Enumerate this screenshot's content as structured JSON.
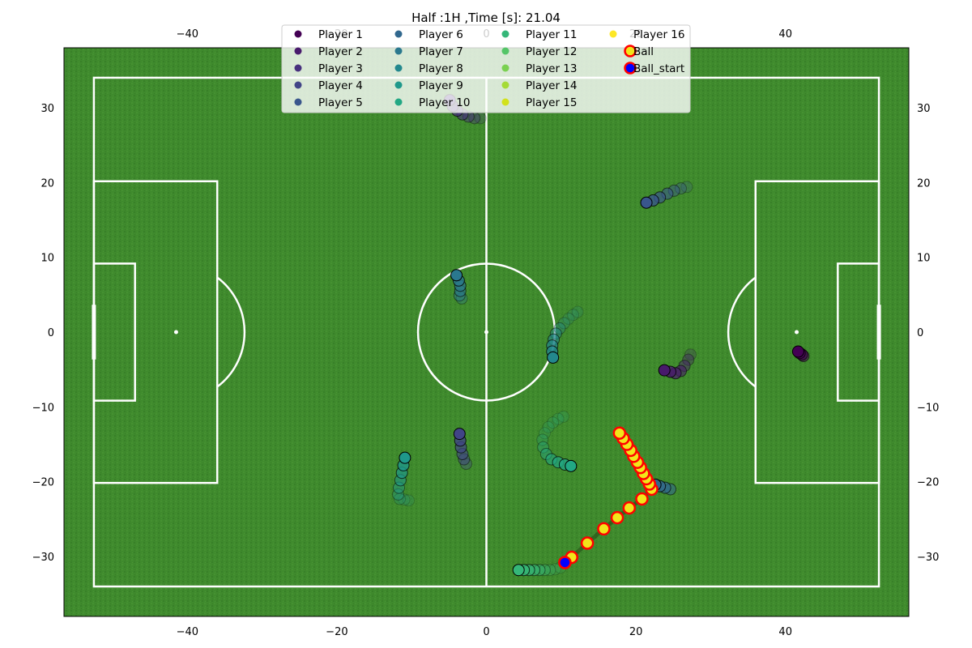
{
  "chart_data": {
    "type": "scatter",
    "title": "Half :1H ,Time [s]: 21.04",
    "xlim": [
      -56.5,
      56.5
    ],
    "ylim": [
      -38,
      38
    ],
    "x_ticks": [
      -40,
      -20,
      0,
      20,
      40
    ],
    "y_ticks": [
      -30,
      -20,
      -10,
      0,
      10,
      20,
      30
    ],
    "x_tick_labels": [
      "−40",
      "−20",
      "0",
      "20",
      "40"
    ],
    "y_tick_labels": [
      "−30",
      "−20",
      "−10",
      "0",
      "10",
      "20",
      "30"
    ],
    "grid": false,
    "legend_position": "top-center",
    "background": "pitch",
    "colors": {
      "pitch": "#3f8a2d",
      "pitch_dark": "#35771f",
      "lines": "#ffffff",
      "ball_fill": "#f2e51a",
      "ball_edge": "#ff0000",
      "ball_start_fill": "#0000ff"
    },
    "series": [
      {
        "name": "Player 1",
        "color": "#440154",
        "points": [
          [
            41.7,
            -2.6
          ],
          [
            41.9,
            -2.8
          ],
          [
            42.2,
            -3.0
          ],
          [
            42.4,
            -3.2
          ]
        ]
      },
      {
        "name": "Player 2",
        "color": "#481a6c",
        "points": [
          [
            23.8,
            -5.1
          ],
          [
            24.6,
            -5.3
          ],
          [
            25.3,
            -5.5
          ],
          [
            26.0,
            -5.2
          ],
          [
            26.5,
            -4.5
          ],
          [
            27.0,
            -3.7
          ],
          [
            27.3,
            -3.0
          ]
        ]
      },
      {
        "name": "Player 3",
        "color": "#472f7d",
        "points": [
          [
            -4.9,
            31.0
          ],
          [
            -4.5,
            30.2
          ],
          [
            -3.9,
            29.6
          ],
          [
            -3.2,
            29.1
          ],
          [
            -2.4,
            28.8
          ],
          [
            -1.6,
            28.6
          ],
          [
            -0.8,
            28.6
          ]
        ]
      },
      {
        "name": "Player 4",
        "color": "#414487",
        "points": [
          [
            -3.6,
            -13.6
          ],
          [
            -3.5,
            -14.5
          ],
          [
            -3.4,
            -15.4
          ],
          [
            -3.2,
            -16.3
          ],
          [
            -3.0,
            -17.0
          ],
          [
            -2.7,
            -17.6
          ]
        ]
      },
      {
        "name": "Player 5",
        "color": "#39568c",
        "points": [
          [
            21.4,
            17.3
          ],
          [
            22.3,
            17.6
          ],
          [
            23.2,
            18.0
          ],
          [
            24.2,
            18.5
          ],
          [
            25.1,
            18.9
          ],
          [
            26.0,
            19.2
          ],
          [
            26.8,
            19.4
          ]
        ]
      },
      {
        "name": "Player 6",
        "color": "#31688e",
        "points": [
          [
            22.6,
            -20.4
          ],
          [
            23.2,
            -20.6
          ],
          [
            23.9,
            -20.8
          ],
          [
            24.6,
            -21.0
          ]
        ]
      },
      {
        "name": "Player 7",
        "color": "#2a788e",
        "points": [
          [
            -4.0,
            7.6
          ],
          [
            -3.7,
            6.9
          ],
          [
            -3.5,
            6.2
          ],
          [
            -3.5,
            5.5
          ],
          [
            -3.6,
            4.9
          ],
          [
            -3.3,
            4.5
          ]
        ]
      },
      {
        "name": "Player 8",
        "color": "#23888e",
        "points": [
          [
            8.9,
            -3.4
          ],
          [
            8.8,
            -2.6
          ],
          [
            8.8,
            -1.8
          ],
          [
            9.0,
            -1.0
          ],
          [
            9.3,
            -0.2
          ],
          [
            9.8,
            0.5
          ],
          [
            10.4,
            1.2
          ],
          [
            11.0,
            1.8
          ],
          [
            11.6,
            2.3
          ],
          [
            12.2,
            2.7
          ]
        ]
      },
      {
        "name": "Player 9",
        "color": "#1f988b",
        "points": [
          [
            -10.9,
            -16.8
          ],
          [
            -11.1,
            -17.8
          ],
          [
            -11.3,
            -18.8
          ],
          [
            -11.5,
            -19.8
          ],
          [
            -11.7,
            -20.8
          ],
          [
            -11.8,
            -21.7
          ],
          [
            -11.6,
            -22.3
          ],
          [
            -11.0,
            -22.4
          ],
          [
            -10.4,
            -22.5
          ]
        ]
      },
      {
        "name": "Player 10",
        "color": "#22a884",
        "points": [
          [
            11.3,
            -17.9
          ],
          [
            10.5,
            -17.7
          ],
          [
            9.6,
            -17.4
          ],
          [
            8.7,
            -17.0
          ],
          [
            8.0,
            -16.3
          ],
          [
            7.6,
            -15.4
          ],
          [
            7.5,
            -14.4
          ],
          [
            7.8,
            -13.5
          ],
          [
            8.3,
            -12.7
          ],
          [
            8.9,
            -12.1
          ],
          [
            9.6,
            -11.6
          ],
          [
            10.3,
            -11.3
          ]
        ]
      },
      {
        "name": "Player 11",
        "color": "#35b779",
        "points": [
          [
            4.3,
            -31.8
          ],
          [
            5.0,
            -31.8
          ],
          [
            5.7,
            -31.8
          ],
          [
            6.4,
            -31.8
          ],
          [
            7.1,
            -31.8
          ],
          [
            7.8,
            -31.8
          ],
          [
            8.5,
            -31.8
          ],
          [
            9.2,
            -31.7
          ],
          [
            9.9,
            -31.5
          ]
        ]
      },
      {
        "name": "Player 12",
        "color": "#54c568",
        "points": []
      },
      {
        "name": "Player 13",
        "color": "#7ad151",
        "points": []
      },
      {
        "name": "Player 14",
        "color": "#a5db36",
        "points": []
      },
      {
        "name": "Player 15",
        "color": "#d2e21b",
        "points": []
      },
      {
        "name": "Player 16",
        "color": "#fde725",
        "points": []
      },
      {
        "name": "Ball",
        "color": "#f2e51a",
        "points": [
          [
            10.5,
            -30.8
          ],
          [
            11.4,
            -30.1
          ],
          [
            13.5,
            -28.2
          ],
          [
            15.7,
            -26.3
          ],
          [
            17.5,
            -24.8
          ],
          [
            19.1,
            -23.5
          ],
          [
            20.8,
            -22.3
          ],
          [
            22.1,
            -21.0
          ],
          [
            21.8,
            -20.3
          ],
          [
            21.4,
            -19.6
          ],
          [
            21.0,
            -18.9
          ],
          [
            20.6,
            -18.1
          ],
          [
            20.2,
            -17.4
          ],
          [
            19.7,
            -16.6
          ],
          [
            19.3,
            -15.8
          ],
          [
            18.8,
            -15.0
          ],
          [
            18.3,
            -14.2
          ],
          [
            17.8,
            -13.5
          ]
        ]
      },
      {
        "name": "Ball_start",
        "color": "#0000ff",
        "points": [
          [
            10.5,
            -30.8
          ]
        ]
      }
    ]
  }
}
